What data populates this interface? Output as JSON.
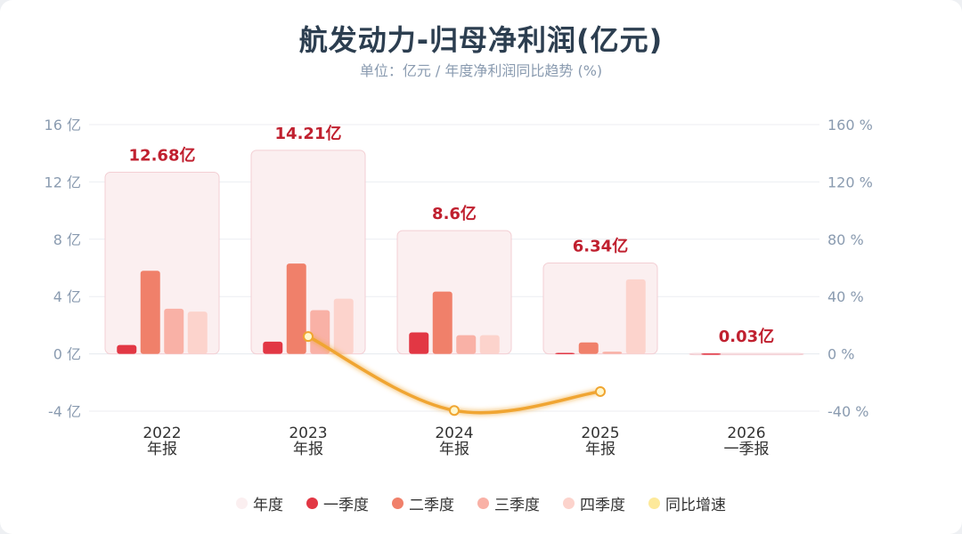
{
  "title": "航发动力-归母净利润(亿元)",
  "subtitle": "单位：亿元 / 年度净利润同比趋势 (%)",
  "colors": {
    "annual": "#fbeff0",
    "annual_stroke": "#f3cfd4",
    "q1": "#e23744",
    "q2": "#f0806a",
    "q3": "#f9b1a6",
    "q4": "#fcd3cc",
    "yoy": "#f0a530",
    "annual_label": "#c0202f"
  },
  "legend": [
    {
      "label": "年度",
      "color": "#fbeff0",
      "icon": "annual-dot"
    },
    {
      "label": "一季度",
      "color": "#e23744",
      "icon": "q1-dot"
    },
    {
      "label": "二季度",
      "color": "#f0806a",
      "icon": "q2-dot"
    },
    {
      "label": "三季度",
      "color": "#f9b1a6",
      "icon": "q3-dot"
    },
    {
      "label": "四季度",
      "color": "#fcd3cc",
      "icon": "q4-dot"
    },
    {
      "label": "同比增速",
      "color": "#fde99a",
      "icon": "yoy-dot"
    }
  ],
  "chart_data": {
    "type": "bar",
    "categories": [
      {
        "year": "2022",
        "period": "年报"
      },
      {
        "year": "2023",
        "period": "年报"
      },
      {
        "year": "2024",
        "period": "年报"
      },
      {
        "year": "2025",
        "period": "年报"
      },
      {
        "year": "2026",
        "period": "一季报"
      }
    ],
    "annual": {
      "name": "年度",
      "values": [
        12.68,
        14.21,
        8.6,
        6.34,
        0.03
      ],
      "labels": [
        "12.68亿",
        "14.21亿",
        "8.6亿",
        "6.34亿",
        "0.03亿"
      ]
    },
    "series": [
      {
        "name": "一季度",
        "values": [
          0.62,
          0.85,
          1.5,
          0.07,
          0.03
        ]
      },
      {
        "name": "二季度",
        "values": [
          5.8,
          6.3,
          4.35,
          0.8,
          null
        ]
      },
      {
        "name": "三季度",
        "values": [
          3.15,
          3.05,
          1.3,
          0.15,
          null
        ]
      },
      {
        "name": "四季度",
        "values": [
          2.95,
          3.85,
          1.3,
          5.2,
          null
        ]
      }
    ],
    "yoy": {
      "name": "同比增速",
      "values": [
        null,
        12.1,
        -39.5,
        -26.3,
        null
      ]
    },
    "y_left": {
      "ticks": [
        16,
        12,
        8,
        4,
        0,
        -4
      ],
      "tick_labels": [
        "16 亿",
        "12 亿",
        "8 亿",
        "4 亿",
        "0 亿",
        "-4 亿"
      ],
      "ylim": [
        -4,
        16
      ]
    },
    "y_right": {
      "ticks": [
        160,
        120,
        80,
        40,
        0,
        -40
      ],
      "tick_labels": [
        "160 %",
        "120 %",
        "80 %",
        "40 %",
        "0 %",
        "-40 %"
      ],
      "ylim": [
        -40,
        160
      ]
    },
    "grid": true,
    "legend_position": "bottom-center"
  }
}
